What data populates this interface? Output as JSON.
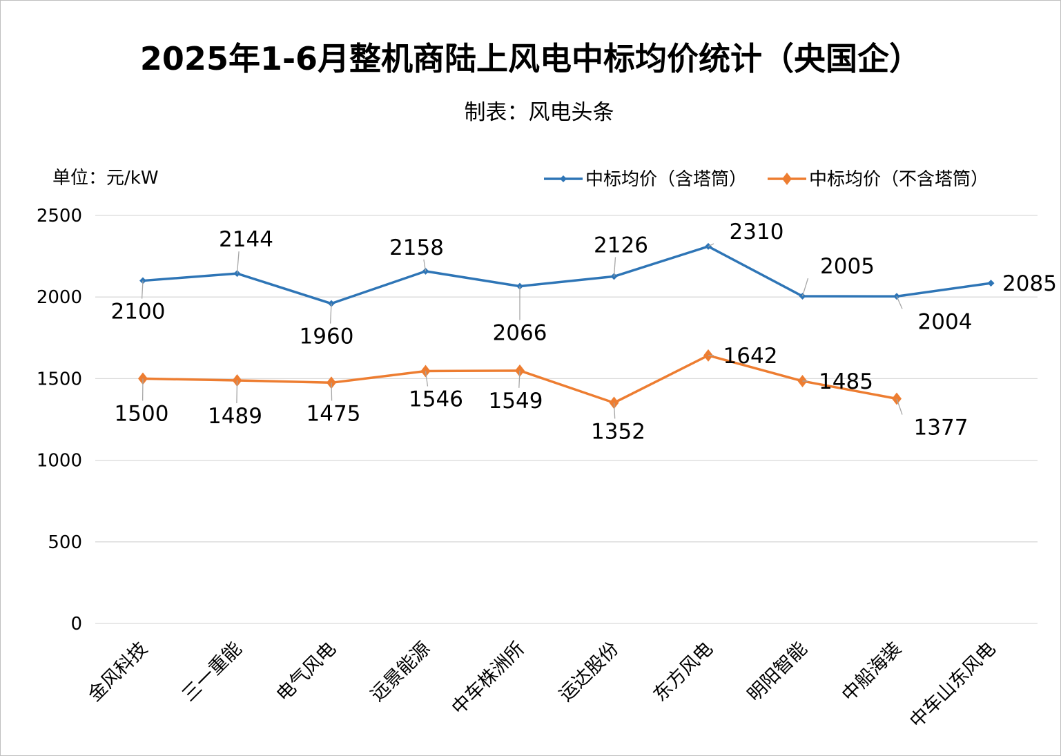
{
  "title": "2025年1-6月整机商陆上风电中标均价统计（央国企）",
  "subtitle": "制表：风电头条",
  "unit": "单位：元/kW",
  "colors": {
    "series_with_tower": "#2E75B6",
    "series_without_tower": "#ED7D31",
    "grid": "#d9d9d9",
    "leader": "#a6a6a6"
  },
  "chart_data": {
    "type": "line",
    "title": "2025年1-6月整机商陆上风电中标均价统计（央国企）",
    "ylabel": "单位：元/kW",
    "ylim": [
      0,
      2500
    ],
    "yticks": [
      0,
      500,
      1000,
      1500,
      2000,
      2500
    ],
    "grid": true,
    "legend_position": "top-right",
    "categories": [
      "金风科技",
      "三一重能",
      "电气风电",
      "远景能源",
      "中车株洲所",
      "运达股份",
      "东方风电",
      "明阳智能",
      "中船海装",
      "中车山东风电"
    ],
    "series": [
      {
        "name": "中标均价（含塔筒）",
        "marker": "diamond",
        "values": [
          2100,
          2144,
          1960,
          2158,
          2066,
          2126,
          2310,
          2005,
          2004,
          2085
        ]
      },
      {
        "name": "中标均价（不含塔筒）",
        "marker": "diamond",
        "values": [
          1500,
          1489,
          1475,
          1546,
          1549,
          1352,
          1642,
          1485,
          1377,
          null
        ]
      }
    ]
  }
}
